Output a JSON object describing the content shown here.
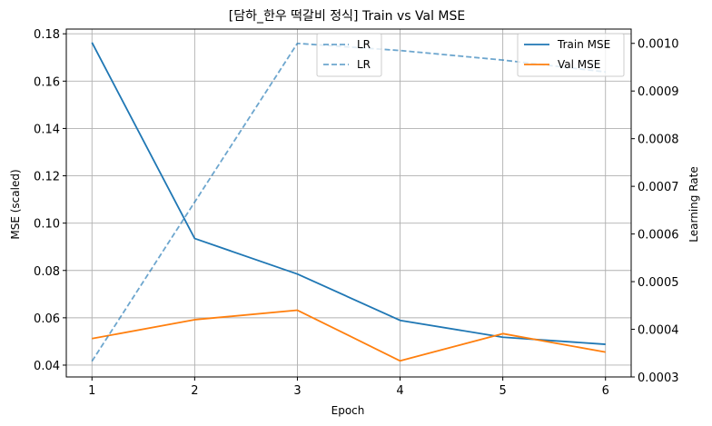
{
  "chart_data": {
    "type": "line",
    "title": "[담하_한우 떡갈비 정식] Train vs Val MSE",
    "xlabel": "Epoch",
    "ylabel": "MSE (scaled)",
    "y2label": "Learning Rate",
    "x": [
      1,
      2,
      3,
      4,
      5,
      6
    ],
    "xlim": [
      0.75,
      6.25
    ],
    "ylim": [
      0.035,
      0.182
    ],
    "y2lim": [
      0.0003,
      0.00103
    ],
    "yticks": [
      "0.04",
      "0.06",
      "0.08",
      "0.10",
      "0.12",
      "0.14",
      "0.16",
      "0.18"
    ],
    "y2ticks": [
      "0.0003",
      "0.0004",
      "0.0005",
      "0.0006",
      "0.0007",
      "0.0008",
      "0.0009",
      "0.0010"
    ],
    "xticks": [
      "1",
      "2",
      "3",
      "4",
      "5",
      "6"
    ],
    "grid": true,
    "series": [
      {
        "name": "Train MSE",
        "axis": "left",
        "color": "#1f77b4",
        "style": "solid",
        "values": [
          0.1763,
          0.0935,
          0.0785,
          0.0589,
          0.0518,
          0.0488
        ]
      },
      {
        "name": "Val MSE",
        "axis": "left",
        "color": "#ff7f0e",
        "style": "solid",
        "values": [
          0.0512,
          0.0592,
          0.0632,
          0.0418,
          0.0533,
          0.0455
        ]
      },
      {
        "name": "LR",
        "axis": "right",
        "color": "#1f77b4",
        "style": "dashed",
        "values": [
          0.000333,
          0.000667,
          0.001,
          0.000985,
          0.000965,
          0.00094
        ]
      }
    ],
    "legends": {
      "lr": {
        "position": "top-center",
        "entries": [
          "LR",
          "LR"
        ]
      },
      "mse": {
        "position": "top-right",
        "entries": [
          "Train MSE",
          "Val MSE"
        ]
      }
    }
  }
}
